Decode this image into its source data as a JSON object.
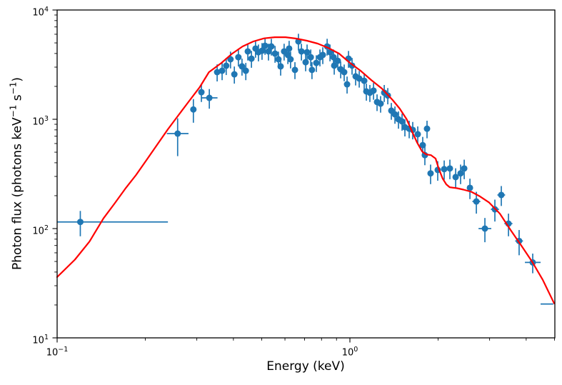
{
  "figure": {
    "background": "#ffffff"
  },
  "chart_data": {
    "type": "scatter",
    "title": "",
    "xlabel": "Energy (keV)",
    "ylabel": "Photon flux (photons keV⁻¹ s⁻¹)",
    "ylabel_parts": [
      "Photon flux (photons keV",
      "−1",
      " s",
      "−1",
      ")"
    ],
    "xscale": "log",
    "yscale": "log",
    "xlim": [
      0.1,
      5.012
    ],
    "ylim": [
      10,
      10000
    ],
    "grid": false,
    "legend": false,
    "x_ticks": [
      {
        "value": 0.1,
        "base": "10",
        "exp": "−1"
      },
      {
        "value": 1,
        "base": "10",
        "exp": "0"
      }
    ],
    "x_minor_ticks": [
      0.2,
      0.3,
      0.4,
      0.5,
      0.6,
      0.7,
      0.8,
      0.9,
      2,
      3,
      4,
      5
    ],
    "y_ticks": [
      {
        "value": 10,
        "base": "10",
        "exp": "1"
      },
      {
        "value": 100,
        "base": "10",
        "exp": "2"
      },
      {
        "value": 1000,
        "base": "10",
        "exp": "3"
      },
      {
        "value": 10000,
        "base": "10",
        "exp": "4"
      }
    ],
    "y_minor_ticks": [
      20,
      30,
      40,
      50,
      60,
      70,
      80,
      90,
      200,
      300,
      400,
      500,
      600,
      700,
      800,
      900,
      2000,
      3000,
      4000,
      5000,
      6000,
      7000,
      8000,
      9000
    ],
    "series": [
      {
        "name": "observed-spectrum",
        "type": "errorbar",
        "color": "#1f77b4",
        "marker": "o",
        "marker_radius": 4.5,
        "points_format": [
          "x_keV",
          "flux",
          "flux_err",
          "x_lo",
          "x_hi",
          "marker(0=none)"
        ],
        "points": [
          [
            0.12,
            115,
            30,
            0.1,
            0.239
          ],
          [
            0.258,
            740,
            280,
            0.237,
            0.281
          ],
          [
            0.292,
            1230,
            300,
            null,
            null
          ],
          [
            0.311,
            1770,
            330,
            null,
            null
          ],
          [
            0.331,
            1570,
            320,
            0.31,
            0.353
          ],
          [
            0.352,
            2700,
            480,
            null,
            null
          ],
          [
            0.366,
            2780,
            500,
            null,
            null
          ],
          [
            0.378,
            3090,
            550,
            null,
            null
          ],
          [
            0.391,
            3540,
            620,
            null,
            null
          ],
          [
            0.403,
            2580,
            460,
            null,
            null
          ],
          [
            0.416,
            3700,
            650,
            null,
            null
          ],
          [
            0.428,
            3050,
            540,
            null,
            null
          ],
          [
            0.441,
            2780,
            500,
            null,
            null
          ],
          [
            0.448,
            4180,
            730,
            null,
            null
          ],
          [
            0.461,
            3590,
            630,
            null,
            null
          ],
          [
            0.476,
            4440,
            780,
            null,
            null
          ],
          [
            0.487,
            4110,
            720,
            null,
            null
          ],
          [
            0.501,
            4240,
            740,
            null,
            null
          ],
          [
            0.513,
            4710,
            820,
            null,
            null
          ],
          [
            0.527,
            4180,
            730,
            null,
            null
          ],
          [
            0.539,
            4640,
            810,
            null,
            null
          ],
          [
            0.555,
            3990,
            700,
            null,
            null
          ],
          [
            0.57,
            3540,
            620,
            null,
            null
          ],
          [
            0.58,
            3050,
            540,
            null,
            null
          ],
          [
            0.596,
            4180,
            730,
            null,
            null
          ],
          [
            0.614,
            3880,
            680,
            null,
            null
          ],
          [
            0.62,
            4440,
            780,
            null,
            null
          ],
          [
            0.627,
            3540,
            620,
            null,
            null
          ],
          [
            0.649,
            2830,
            500,
            null,
            null
          ],
          [
            0.667,
            5160,
            900,
            null,
            null
          ],
          [
            0.683,
            4180,
            730,
            null,
            null
          ],
          [
            0.706,
            3330,
            580,
            null,
            null
          ],
          [
            0.714,
            4110,
            720,
            null,
            null
          ],
          [
            0.735,
            3700,
            650,
            null,
            null
          ],
          [
            0.742,
            2830,
            500,
            null,
            null
          ],
          [
            0.768,
            3280,
            570,
            null,
            null
          ],
          [
            0.79,
            3700,
            650,
            null,
            null
          ],
          [
            0.808,
            3880,
            680,
            null,
            null
          ],
          [
            0.836,
            4640,
            810,
            null,
            null
          ],
          [
            0.855,
            4110,
            720,
            null,
            null
          ],
          [
            0.879,
            3700,
            650,
            null,
            null
          ],
          [
            0.884,
            3100,
            540,
            null,
            null
          ],
          [
            0.909,
            3430,
            600,
            null,
            null
          ],
          [
            0.93,
            2870,
            500,
            null,
            null
          ],
          [
            0.956,
            2700,
            470,
            null,
            null
          ],
          [
            0.978,
            2090,
            370,
            null,
            null
          ],
          [
            0.989,
            3590,
            630,
            null,
            null
          ],
          [
            1.017,
            3100,
            540,
            null,
            null
          ],
          [
            1.046,
            2470,
            430,
            null,
            null
          ],
          [
            1.076,
            2360,
            410,
            null,
            null
          ],
          [
            1.119,
            2250,
            390,
            null,
            null
          ],
          [
            1.138,
            1800,
            320,
            null,
            null
          ],
          [
            1.17,
            1750,
            310,
            null,
            null
          ],
          [
            1.204,
            1830,
            320,
            null,
            null
          ],
          [
            1.238,
            1440,
            250,
            null,
            null
          ],
          [
            1.273,
            1390,
            240,
            null,
            null
          ],
          [
            1.31,
            1750,
            310,
            null,
            null
          ],
          [
            1.347,
            1650,
            280,
            null,
            null
          ],
          [
            1.385,
            1200,
            210,
            null,
            null
          ],
          [
            1.425,
            1110,
            200,
            null,
            null
          ],
          [
            1.465,
            1000,
            180,
            null,
            null
          ],
          [
            1.507,
            956,
            170,
            null,
            null
          ],
          [
            1.541,
            847,
            150,
            null,
            null
          ],
          [
            1.594,
            820,
            150,
            null,
            null
          ],
          [
            1.639,
            800,
            145,
            null,
            null
          ],
          [
            1.705,
            730,
            130,
            null,
            null
          ],
          [
            1.773,
            580,
            110,
            null,
            null
          ],
          [
            1.803,
            470,
            90,
            null,
            null
          ],
          [
            1.834,
            820,
            150,
            null,
            null
          ],
          [
            1.886,
            320,
            65,
            null,
            null
          ],
          [
            1.995,
            344,
            70,
            null,
            null
          ],
          [
            2.099,
            350,
            70,
            null,
            null
          ],
          [
            2.195,
            355,
            72,
            null,
            null
          ],
          [
            2.297,
            296,
            60,
            null,
            null
          ],
          [
            2.388,
            320,
            65,
            null,
            null
          ],
          [
            2.457,
            355,
            72,
            null,
            null
          ],
          [
            2.57,
            236,
            50,
            null,
            null
          ],
          [
            2.703,
            177,
            40,
            2.62,
            2.79
          ],
          [
            2.891,
            100,
            25,
            2.75,
            3.04
          ],
          [
            3.127,
            150,
            34,
            3.03,
            3.23
          ],
          [
            3.289,
            203,
            42,
            3.19,
            3.39
          ],
          [
            3.48,
            111,
            26,
            3.37,
            3.59
          ],
          [
            3.784,
            77,
            20,
            3.67,
            3.9
          ],
          [
            4.211,
            49,
            10,
            3.96,
            4.48
          ],
          [
            4.712,
            20.4,
            0,
            4.48,
            4.95,
            0
          ]
        ]
      },
      {
        "name": "model-curve",
        "type": "line",
        "color": "#ff0000",
        "line_width": 2.2,
        "points": [
          [
            0.1,
            36
          ],
          [
            0.115,
            52
          ],
          [
            0.129,
            76
          ],
          [
            0.144,
            124
          ],
          [
            0.157,
            169
          ],
          [
            0.171,
            232
          ],
          [
            0.186,
            309
          ],
          [
            0.202,
            424
          ],
          [
            0.22,
            590
          ],
          [
            0.239,
            810
          ],
          [
            0.26,
            1094
          ],
          [
            0.283,
            1479
          ],
          [
            0.307,
            1969
          ],
          [
            0.33,
            2700
          ],
          [
            0.364,
            3281
          ],
          [
            0.396,
            3990
          ],
          [
            0.43,
            4642
          ],
          [
            0.468,
            5157
          ],
          [
            0.509,
            5500
          ],
          [
            0.554,
            5640
          ],
          [
            0.603,
            5640
          ],
          [
            0.656,
            5477
          ],
          [
            0.713,
            5236
          ],
          [
            0.776,
            4929
          ],
          [
            0.844,
            4500
          ],
          [
            0.918,
            3993
          ],
          [
            1.0,
            3283
          ],
          [
            1.087,
            2782
          ],
          [
            1.182,
            2289
          ],
          [
            1.286,
            1910
          ],
          [
            1.399,
            1502
          ],
          [
            1.479,
            1253
          ],
          [
            1.563,
            1000
          ],
          [
            1.634,
            763
          ],
          [
            1.698,
            609
          ],
          [
            1.764,
            508
          ],
          [
            1.823,
            477
          ],
          [
            1.893,
            470
          ],
          [
            1.962,
            437
          ],
          [
            2.015,
            349
          ],
          [
            2.073,
            287
          ],
          [
            2.135,
            254
          ],
          [
            2.191,
            239
          ],
          [
            2.322,
            234
          ],
          [
            2.443,
            227
          ],
          [
            2.598,
            217
          ],
          [
            2.779,
            197
          ],
          [
            2.99,
            173
          ],
          [
            3.253,
            137
          ],
          [
            3.539,
            97
          ],
          [
            3.85,
            70
          ],
          [
            4.188,
            50
          ],
          [
            4.556,
            34
          ],
          [
            4.984,
            20.7
          ]
        ]
      }
    ]
  }
}
